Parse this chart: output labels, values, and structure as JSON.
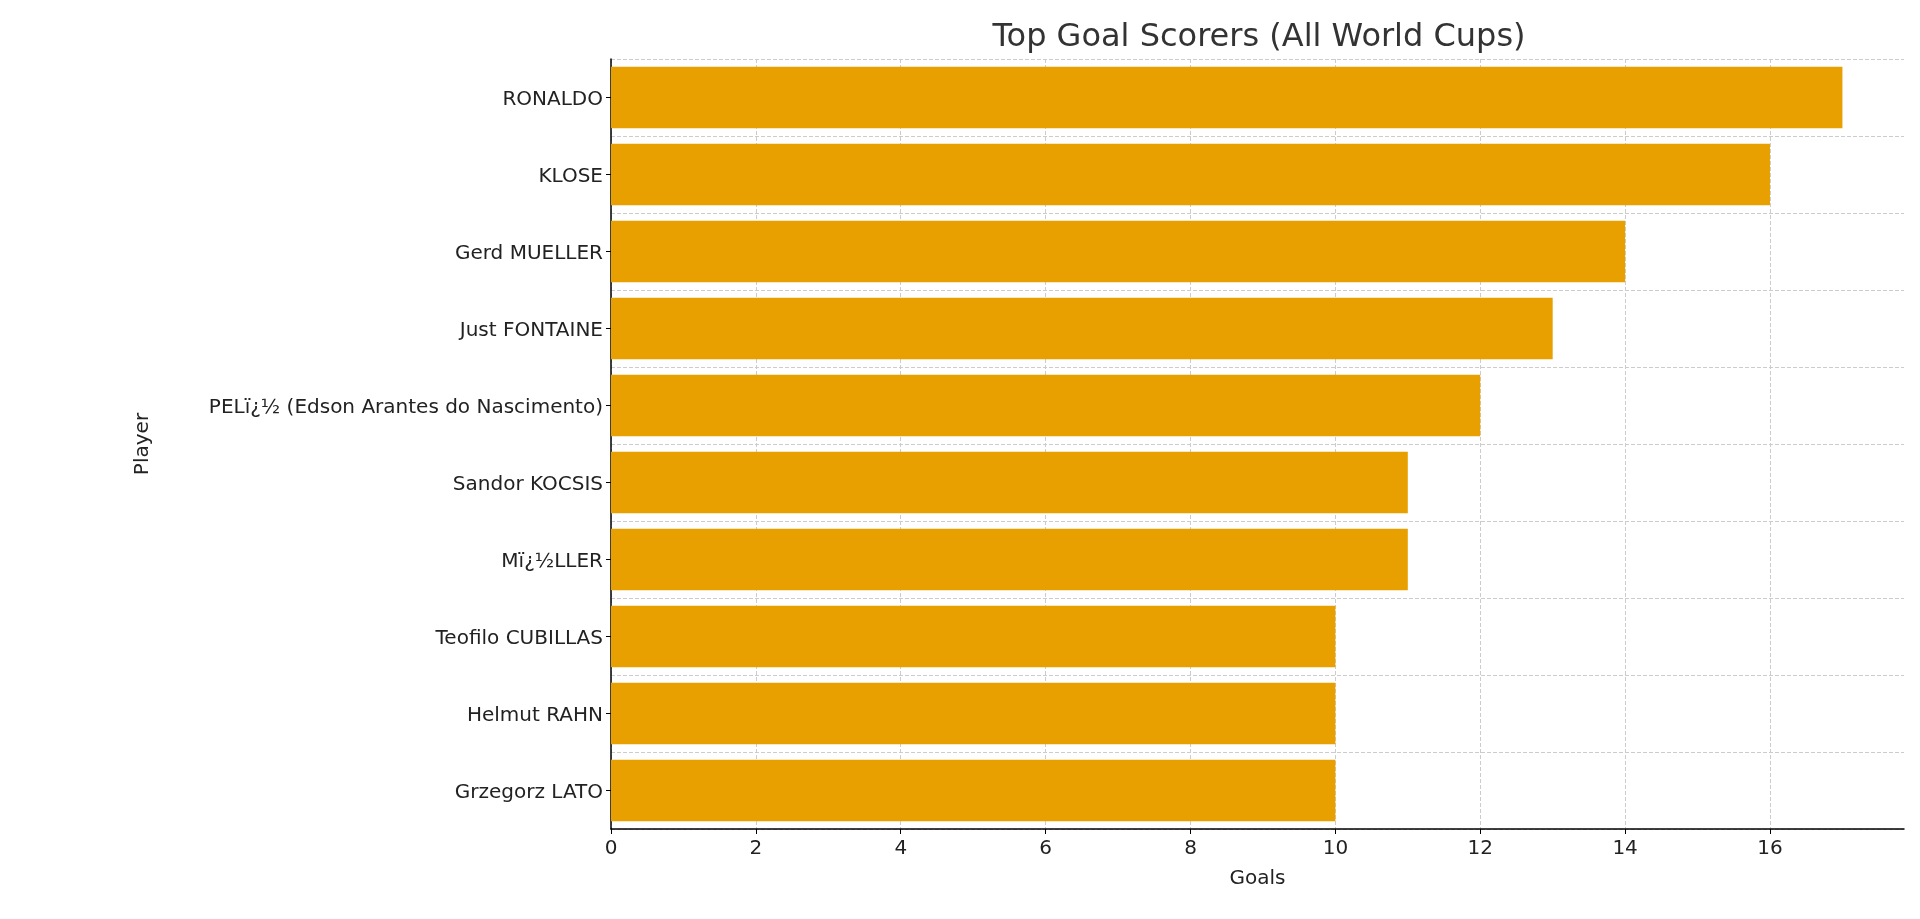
{
  "chart_data": {
    "type": "bar",
    "orientation": "horizontal",
    "title": "Top Goal Scorers (All World Cups)",
    "xlabel": "Goals",
    "ylabel": "Player",
    "categories": [
      "RONALDO",
      "KLOSE",
      "Gerd MUELLER",
      "Just FONTAINE",
      "PELï¿½ (Edson Arantes do Nascimento)",
      "Sandor KOCSIS",
      "Mï¿½LLER",
      "Teofilo CUBILLAS",
      "Helmut RAHN",
      "Grzegorz LATO"
    ],
    "values": [
      17,
      16,
      14,
      13,
      12,
      11,
      11,
      10,
      10,
      10
    ],
    "color": "#e8a000",
    "xlim": [
      0,
      17.85
    ],
    "xticks": [
      0,
      2,
      4,
      6,
      8,
      10,
      12,
      14,
      16
    ],
    "grid": true
  }
}
